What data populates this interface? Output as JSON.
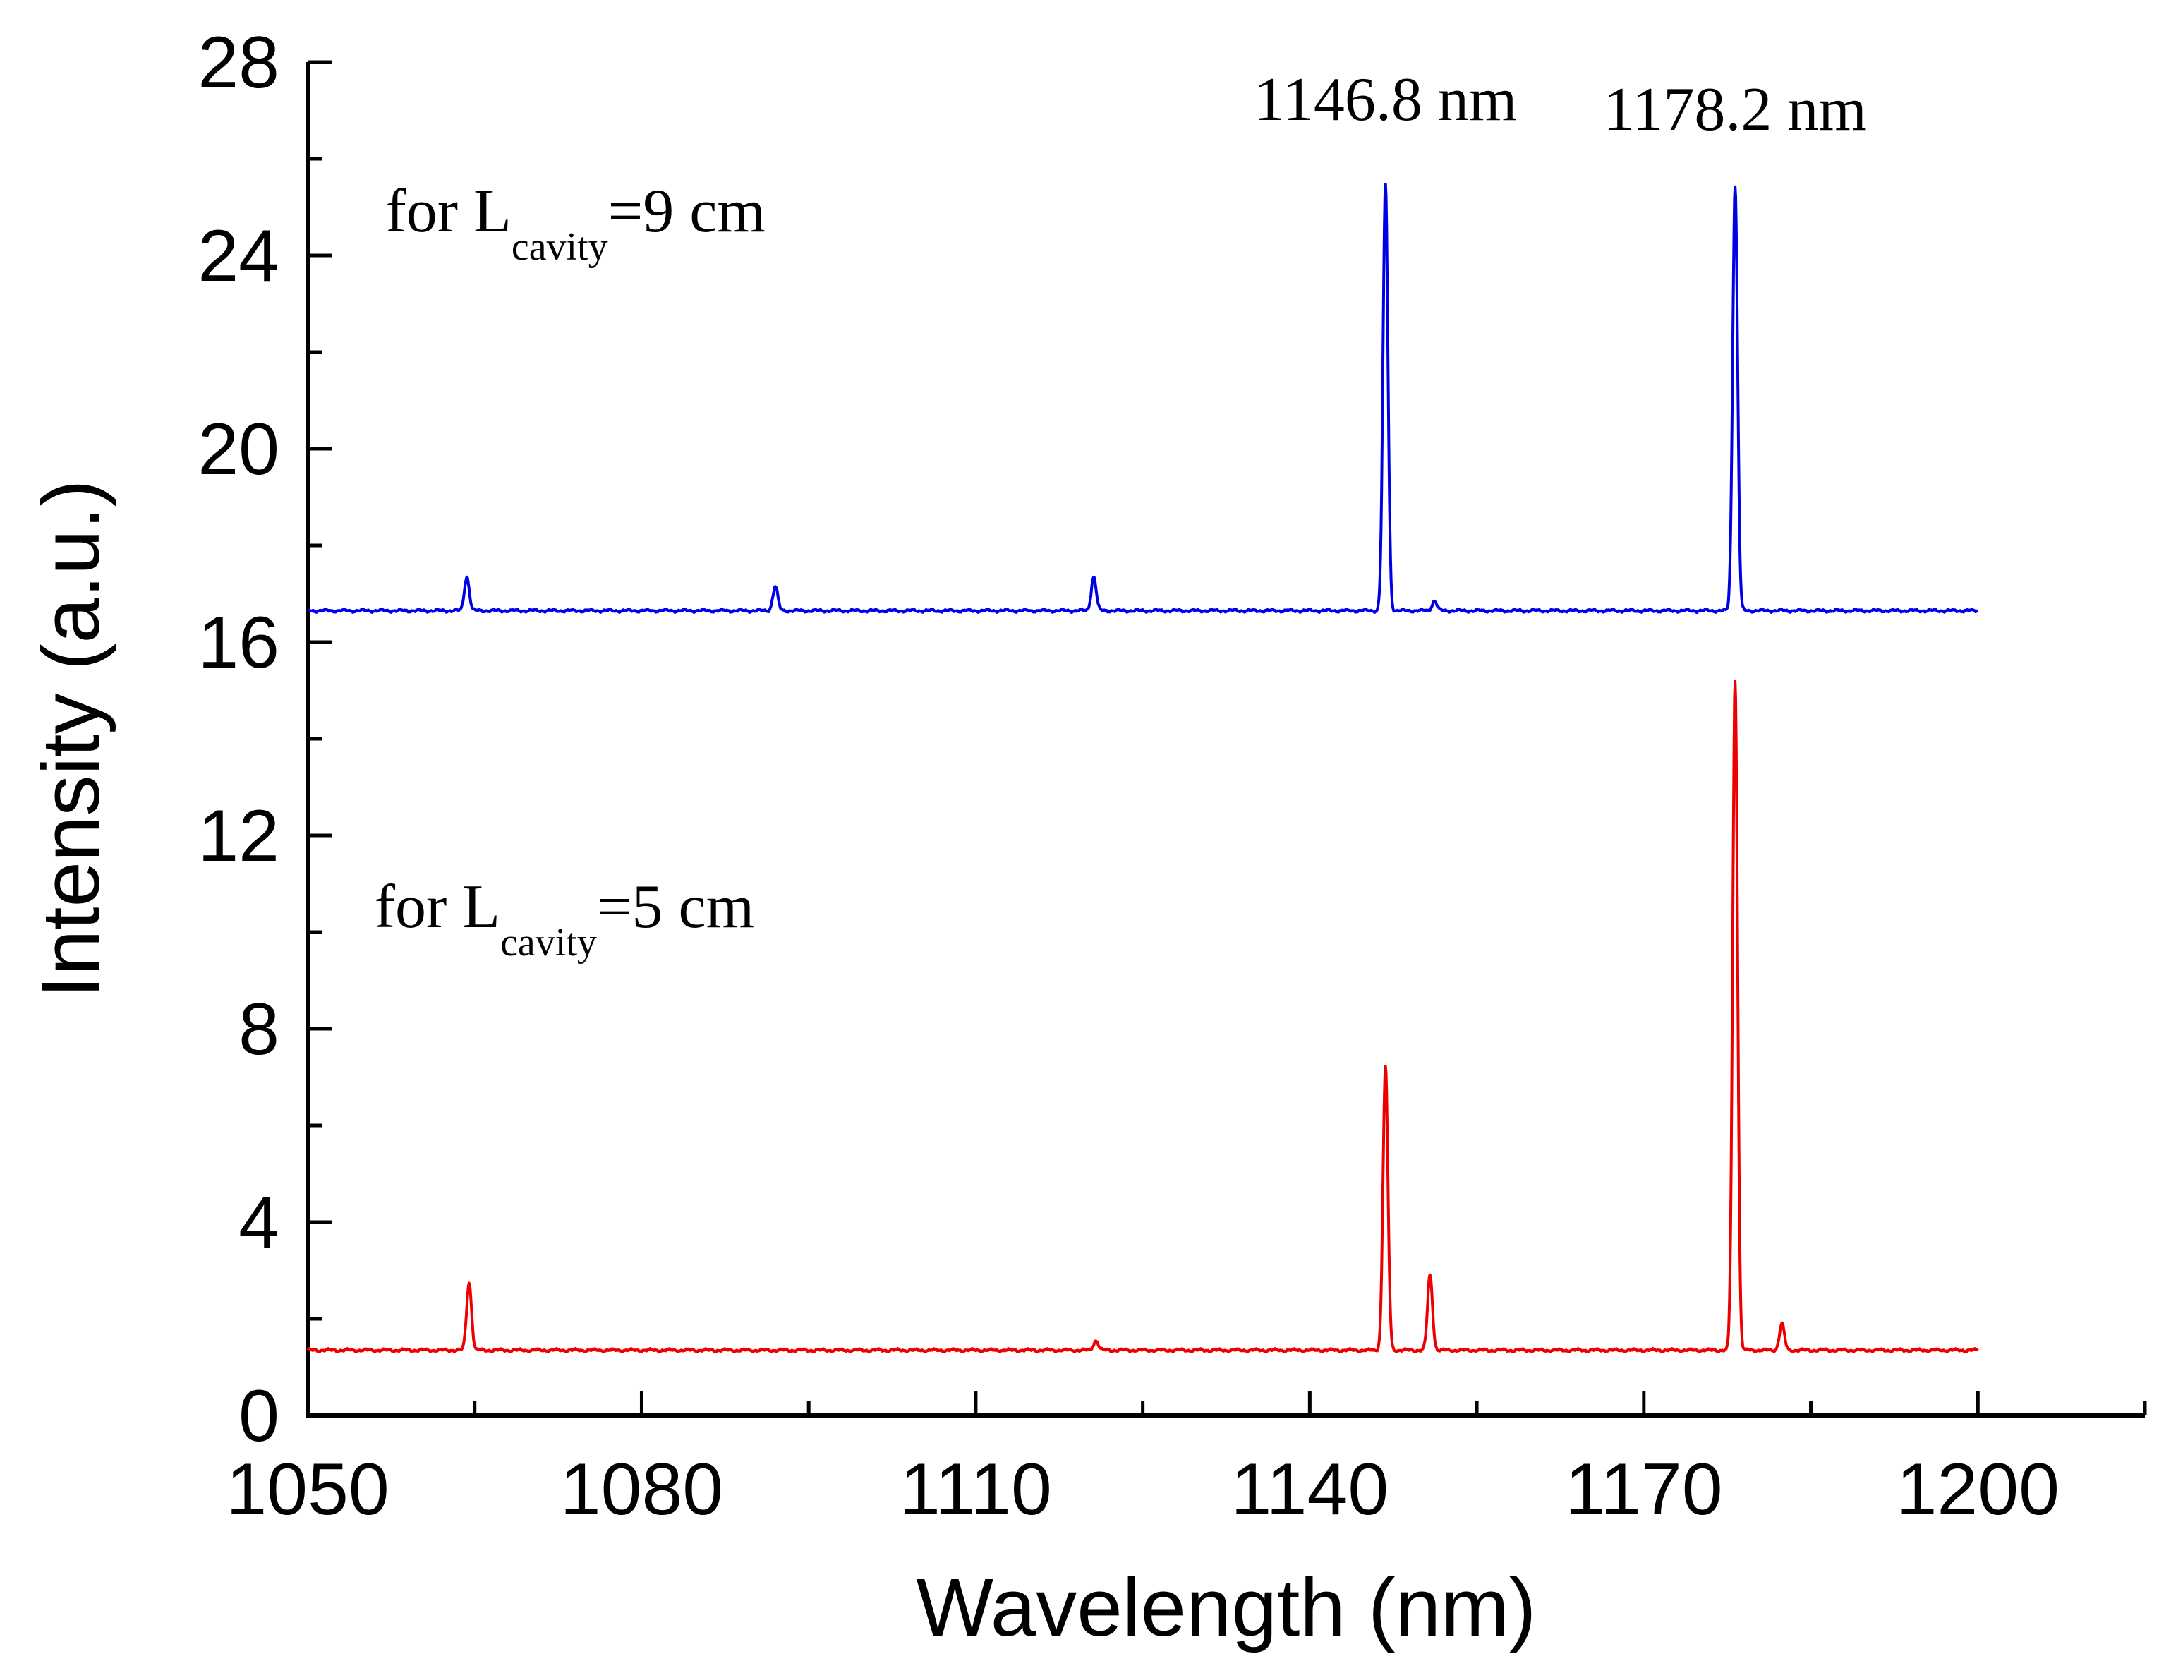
{
  "chart_data": {
    "type": "line",
    "xlabel": "Wavelength (nm)",
    "ylabel": "Intensity (a.u.)",
    "xlim": [
      1050,
      1215
    ],
    "ylim": [
      0,
      28
    ],
    "x_ticks": [
      1050,
      1080,
      1110,
      1140,
      1170,
      1200
    ],
    "y_ticks": [
      0,
      4,
      8,
      12,
      16,
      20,
      24,
      28
    ],
    "grid": false,
    "legend": "none",
    "series": [
      {
        "color": "#0000e6",
        "baseline": 16.65,
        "x_range": [
          1050,
          1200
        ],
        "peaks": [
          {
            "x": 1064.3,
            "y": 17.35
          },
          {
            "x": 1092.0,
            "y": 17.15
          },
          {
            "x": 1120.6,
            "y": 17.35
          },
          {
            "x": 1146.8,
            "y": 25.45
          },
          {
            "x": 1151.2,
            "y": 16.85
          },
          {
            "x": 1178.2,
            "y": 25.45
          }
        ]
      },
      {
        "color": "#ee0000",
        "baseline": 1.35,
        "x_range": [
          1050,
          1200
        ],
        "peaks": [
          {
            "x": 1064.5,
            "y": 2.75
          },
          {
            "x": 1120.8,
            "y": 1.55
          },
          {
            "x": 1146.8,
            "y": 7.2
          },
          {
            "x": 1150.8,
            "y": 2.9
          },
          {
            "x": 1178.2,
            "y": 15.2
          },
          {
            "x": 1182.4,
            "y": 1.9
          }
        ]
      }
    ],
    "annotations": [
      {
        "text": "1146.8 nm",
        "x": 1146.8,
        "y": 26.8
      },
      {
        "text": "1178.2 nm",
        "x": 1178.2,
        "y": 26.6
      },
      {
        "main": "for L",
        "sub": "cavity",
        "tail": "=9 cm",
        "x": 1057,
        "y": 24.5
      },
      {
        "main": "for L",
        "sub": "cavity",
        "tail": "=5 cm",
        "x": 1056,
        "y": 10.1
      }
    ]
  }
}
